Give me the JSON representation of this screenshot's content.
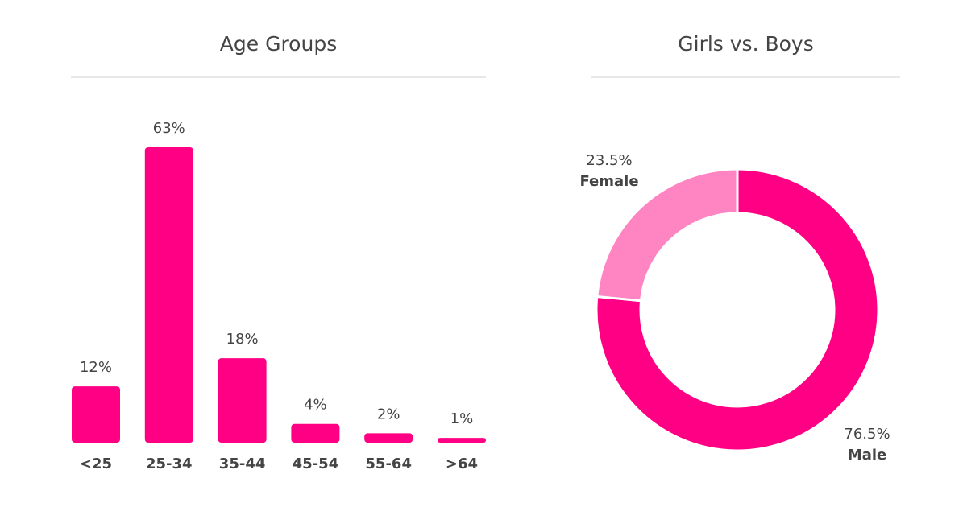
{
  "colors": {
    "primary": "#ff0084",
    "secondary": "#ff85c2",
    "text": "#444444",
    "divider": "#e8e8e8"
  },
  "chart_data": [
    {
      "type": "bar",
      "title": "Age Groups",
      "categories": [
        "<25",
        "25-34",
        "35-44",
        "45-54",
        "55-64",
        ">64"
      ],
      "values": [
        12,
        63,
        18,
        4,
        2,
        1
      ],
      "value_labels": [
        "12%",
        "63%",
        "18%",
        "4%",
        "2%",
        "1%"
      ],
      "ylim": [
        0,
        63
      ],
      "grid": false,
      "legend": "none"
    },
    {
      "type": "pie",
      "title": "Girls vs. Boys",
      "donut": true,
      "slices": [
        {
          "name": "Male",
          "value": 76.5,
          "label": "76.5%",
          "color": "#ff0084"
        },
        {
          "name": "Female",
          "value": 23.5,
          "label": "23.5%",
          "color": "#ff85c2"
        }
      ],
      "legend": "none"
    }
  ]
}
